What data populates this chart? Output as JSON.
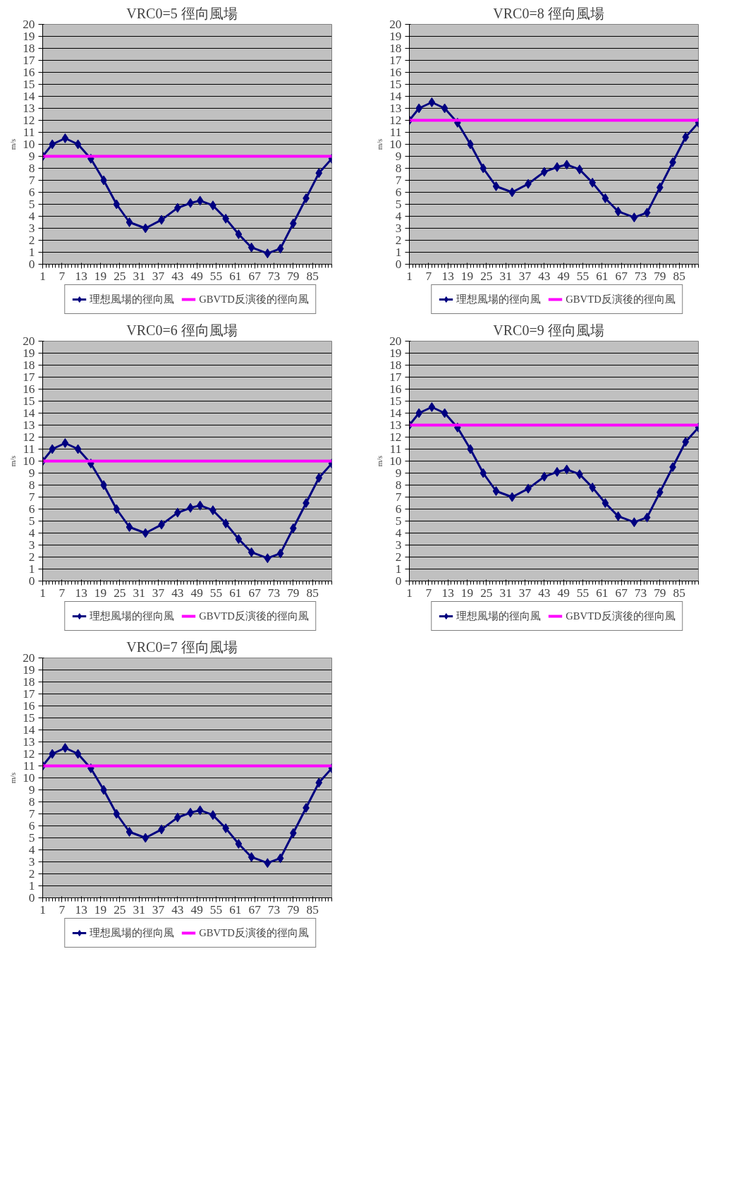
{
  "chart_data": [
    {
      "type": "line",
      "title": "VRC0=5    徑向風場",
      "ylabel": "m/s",
      "xlim": [
        1,
        91
      ],
      "xticks": [
        1,
        7,
        13,
        19,
        25,
        31,
        37,
        43,
        49,
        55,
        61,
        67,
        73,
        79,
        85
      ],
      "ylim": [
        0,
        20
      ],
      "yticks": [
        0,
        1,
        2,
        3,
        4,
        5,
        6,
        7,
        8,
        9,
        10,
        11,
        12,
        13,
        14,
        15,
        16,
        17,
        18,
        19,
        20
      ],
      "grid": "y",
      "legend": "bottom",
      "series": [
        {
          "name": "理想風場的徑向風",
          "color": "#000080",
          "marker": "diamond",
          "x": [
            1,
            4,
            8,
            12,
            16,
            20,
            24,
            28,
            33,
            38,
            43,
            47,
            50,
            54,
            58,
            62,
            66,
            71,
            75,
            79,
            83,
            87,
            91
          ],
          "values": [
            9.0,
            10.0,
            10.5,
            10.0,
            8.8,
            7.0,
            5.0,
            3.5,
            3.0,
            3.7,
            4.7,
            5.1,
            5.3,
            4.9,
            3.8,
            2.5,
            1.4,
            0.9,
            1.3,
            3.4,
            5.5,
            7.6,
            8.8
          ]
        },
        {
          "name": "GBVTD反演後的徑向風",
          "color": "#ff00ff",
          "marker": "none",
          "x": [
            1,
            91
          ],
          "values": [
            9,
            9
          ]
        }
      ]
    },
    {
      "type": "line",
      "title": "VRC0=8    徑向風場",
      "ylabel": "m/s",
      "xlim": [
        1,
        91
      ],
      "xticks": [
        1,
        7,
        13,
        19,
        25,
        31,
        37,
        43,
        49,
        55,
        61,
        67,
        73,
        79,
        85
      ],
      "ylim": [
        0,
        20
      ],
      "yticks": [
        0,
        1,
        2,
        3,
        4,
        5,
        6,
        7,
        8,
        9,
        10,
        11,
        12,
        13,
        14,
        15,
        16,
        17,
        18,
        19,
        20
      ],
      "grid": "y",
      "legend": "bottom",
      "series": [
        {
          "name": "理想風場的徑向風",
          "color": "#000080",
          "marker": "diamond",
          "x": [
            1,
            4,
            8,
            12,
            16,
            20,
            24,
            28,
            33,
            38,
            43,
            47,
            50,
            54,
            58,
            62,
            66,
            71,
            75,
            79,
            83,
            87,
            91
          ],
          "values": [
            12.0,
            13.0,
            13.5,
            13.0,
            11.8,
            10.0,
            8.0,
            6.5,
            6.0,
            6.7,
            7.7,
            8.1,
            8.3,
            7.9,
            6.8,
            5.5,
            4.4,
            3.9,
            4.3,
            6.4,
            8.5,
            10.6,
            11.8
          ]
        },
        {
          "name": "GBVTD反演後的徑向風",
          "color": "#ff00ff",
          "marker": "none",
          "x": [
            1,
            91
          ],
          "values": [
            12,
            12
          ]
        }
      ]
    },
    {
      "type": "line",
      "title": "VRC0=6    徑向風場",
      "ylabel": "m/s",
      "xlim": [
        1,
        91
      ],
      "xticks": [
        1,
        7,
        13,
        19,
        25,
        31,
        37,
        43,
        49,
        55,
        61,
        67,
        73,
        79,
        85
      ],
      "ylim": [
        0,
        20
      ],
      "yticks": [
        0,
        1,
        2,
        3,
        4,
        5,
        6,
        7,
        8,
        9,
        10,
        11,
        12,
        13,
        14,
        15,
        16,
        17,
        18,
        19,
        20
      ],
      "grid": "y",
      "legend": "bottom",
      "series": [
        {
          "name": "理想風場的徑向風",
          "color": "#000080",
          "marker": "diamond",
          "x": [
            1,
            4,
            8,
            12,
            16,
            20,
            24,
            28,
            33,
            38,
            43,
            47,
            50,
            54,
            58,
            62,
            66,
            71,
            75,
            79,
            83,
            87,
            91
          ],
          "values": [
            10.0,
            11.0,
            11.5,
            11.0,
            9.8,
            8.0,
            6.0,
            4.5,
            4.0,
            4.7,
            5.7,
            6.1,
            6.3,
            5.9,
            4.8,
            3.5,
            2.4,
            1.9,
            2.3,
            4.4,
            6.5,
            8.6,
            9.8
          ]
        },
        {
          "name": "GBVTD反演後的徑向風",
          "color": "#ff00ff",
          "marker": "none",
          "x": [
            1,
            91
          ],
          "values": [
            10,
            10
          ]
        }
      ]
    },
    {
      "type": "line",
      "title": "VRC0=9    徑向風場",
      "ylabel": "m/s",
      "xlim": [
        1,
        91
      ],
      "xticks": [
        1,
        7,
        13,
        19,
        25,
        31,
        37,
        43,
        49,
        55,
        61,
        67,
        73,
        79,
        85
      ],
      "ylim": [
        0,
        20
      ],
      "yticks": [
        0,
        1,
        2,
        3,
        4,
        5,
        6,
        7,
        8,
        9,
        10,
        11,
        12,
        13,
        14,
        15,
        16,
        17,
        18,
        19,
        20
      ],
      "grid": "y",
      "legend": "bottom",
      "series": [
        {
          "name": "理想風場的徑向風",
          "color": "#000080",
          "marker": "diamond",
          "x": [
            1,
            4,
            8,
            12,
            16,
            20,
            24,
            28,
            33,
            38,
            43,
            47,
            50,
            54,
            58,
            62,
            66,
            71,
            75,
            79,
            83,
            87,
            91
          ],
          "values": [
            13.0,
            14.0,
            14.5,
            14.0,
            12.8,
            11.0,
            9.0,
            7.5,
            7.0,
            7.7,
            8.7,
            9.1,
            9.3,
            8.9,
            7.8,
            6.5,
            5.4,
            4.9,
            5.3,
            7.4,
            9.5,
            11.6,
            12.8
          ]
        },
        {
          "name": "GBVTD反演後的徑向風",
          "color": "#ff00ff",
          "marker": "none",
          "x": [
            1,
            91
          ],
          "values": [
            13,
            13
          ]
        }
      ]
    },
    {
      "type": "line",
      "title": "VRC0=7    徑向風場",
      "ylabel": "m/s",
      "xlim": [
        1,
        91
      ],
      "xticks": [
        1,
        7,
        13,
        19,
        25,
        31,
        37,
        43,
        49,
        55,
        61,
        67,
        73,
        79,
        85
      ],
      "ylim": [
        0,
        20
      ],
      "yticks": [
        0,
        1,
        2,
        3,
        4,
        5,
        6,
        7,
        8,
        9,
        10,
        11,
        12,
        13,
        14,
        15,
        16,
        17,
        18,
        19,
        20
      ],
      "grid": "y",
      "legend": "bottom",
      "series": [
        {
          "name": "理想風場的徑向風",
          "color": "#000080",
          "marker": "diamond",
          "x": [
            1,
            4,
            8,
            12,
            16,
            20,
            24,
            28,
            33,
            38,
            43,
            47,
            50,
            54,
            58,
            62,
            66,
            71,
            75,
            79,
            83,
            87,
            91
          ],
          "values": [
            11.0,
            12.0,
            12.5,
            12.0,
            10.8,
            9.0,
            7.0,
            5.5,
            5.0,
            5.7,
            6.7,
            7.1,
            7.3,
            6.9,
            5.8,
            4.5,
            3.4,
            2.9,
            3.3,
            5.4,
            7.5,
            9.6,
            10.8
          ]
        },
        {
          "name": "GBVTD反演後的徑向風",
          "color": "#ff00ff",
          "marker": "none",
          "x": [
            1,
            91
          ],
          "values": [
            11,
            11
          ]
        }
      ]
    }
  ]
}
